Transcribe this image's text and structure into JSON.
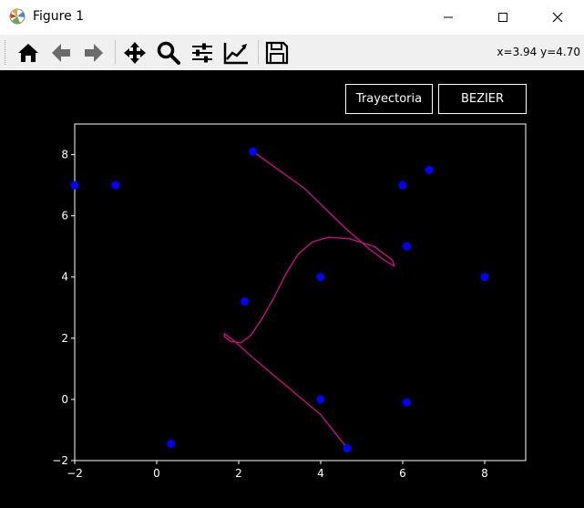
{
  "window": {
    "title": "Figure 1",
    "app_icon": "matplotlib-icon",
    "controls": [
      "minimize-icon",
      "maximize-icon",
      "close-icon"
    ]
  },
  "toolbar": {
    "tools": [
      {
        "name": "home",
        "icon": "home-icon"
      },
      {
        "name": "back",
        "icon": "arrow-left-icon"
      },
      {
        "name": "forward",
        "icon": "arrow-right-icon"
      },
      {
        "name": "pan",
        "icon": "move-icon"
      },
      {
        "name": "zoom",
        "icon": "search-icon"
      },
      {
        "name": "subplots",
        "icon": "sliders-icon"
      },
      {
        "name": "customize",
        "icon": "line-chart-icon"
      },
      {
        "name": "save",
        "icon": "floppy-disk-icon"
      }
    ],
    "coordinates": "x=3.94 y=4.70"
  },
  "figure_buttons": {
    "trayectoria": "Trayectoria",
    "bezier": "BEZIER"
  },
  "chart_data": {
    "type": "scatter",
    "title": "",
    "xlabel": "",
    "ylabel": "",
    "xlim": [
      -2,
      9
    ],
    "ylim": [
      -2,
      9
    ],
    "xticks": [
      "−2",
      "0",
      "2",
      "4",
      "6",
      "8"
    ],
    "yticks": [
      "−2",
      "0",
      "2",
      "4",
      "6",
      "8"
    ],
    "grid": false,
    "background": "#000000",
    "axis_color": "#ffffff",
    "point_color": "#0000ff",
    "curve_color": "#c71585",
    "points": [
      {
        "x": -2.0,
        "y": 7.0
      },
      {
        "x": -1.0,
        "y": 7.0
      },
      {
        "x": 0.35,
        "y": -1.45
      },
      {
        "x": 2.15,
        "y": 3.2
      },
      {
        "x": 2.35,
        "y": 8.1
      },
      {
        "x": 4.0,
        "y": 4.0
      },
      {
        "x": 4.0,
        "y": 0.0
      },
      {
        "x": 4.65,
        "y": -1.6
      },
      {
        "x": 6.0,
        "y": 7.0
      },
      {
        "x": 6.1,
        "y": 5.0
      },
      {
        "x": 6.1,
        "y": -0.1
      },
      {
        "x": 6.65,
        "y": 7.5
      },
      {
        "x": 8.0,
        "y": 4.0
      }
    ],
    "curve": [
      {
        "x": 2.35,
        "y": 8.1
      },
      {
        "x": 3.6,
        "y": 6.9
      },
      {
        "x": 4.6,
        "y": 5.6
      },
      {
        "x": 5.2,
        "y": 4.9
      },
      {
        "x": 5.55,
        "y": 4.55
      },
      {
        "x": 5.8,
        "y": 4.35
      },
      {
        "x": 5.75,
        "y": 4.55
      },
      {
        "x": 5.3,
        "y": 5.0
      },
      {
        "x": 4.7,
        "y": 5.25
      },
      {
        "x": 4.2,
        "y": 5.3
      },
      {
        "x": 3.8,
        "y": 5.15
      },
      {
        "x": 3.45,
        "y": 4.75
      },
      {
        "x": 3.15,
        "y": 4.1
      },
      {
        "x": 2.85,
        "y": 3.3
      },
      {
        "x": 2.55,
        "y": 2.6
      },
      {
        "x": 2.3,
        "y": 2.1
      },
      {
        "x": 2.05,
        "y": 1.85
      },
      {
        "x": 1.8,
        "y": 1.9
      },
      {
        "x": 1.65,
        "y": 2.05
      },
      {
        "x": 1.65,
        "y": 2.15
      },
      {
        "x": 1.9,
        "y": 1.9
      },
      {
        "x": 2.4,
        "y": 1.3
      },
      {
        "x": 3.2,
        "y": 0.4
      },
      {
        "x": 4.0,
        "y": -0.5
      },
      {
        "x": 4.65,
        "y": -1.6
      }
    ]
  }
}
